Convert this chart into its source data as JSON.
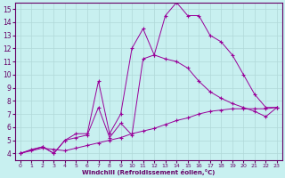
{
  "xlabel": "Windchill (Refroidissement éolien,°C)",
  "bg_color": "#c8f0f0",
  "line_color": "#990099",
  "grid_color": "#b0d8d8",
  "xlim": [
    -0.5,
    23.5
  ],
  "ylim": [
    3.5,
    15.5
  ],
  "xticks": [
    0,
    1,
    2,
    3,
    4,
    5,
    6,
    7,
    8,
    9,
    10,
    11,
    12,
    13,
    14,
    15,
    16,
    17,
    18,
    19,
    20,
    21,
    22,
    23
  ],
  "yticks": [
    4,
    5,
    6,
    7,
    8,
    9,
    10,
    11,
    12,
    13,
    14,
    15
  ],
  "line1_x": [
    0,
    1,
    2,
    3,
    4,
    5,
    6,
    7,
    8,
    9,
    10,
    11,
    12,
    13,
    14,
    15,
    16,
    17,
    18,
    19,
    20,
    21,
    22,
    23
  ],
  "line1_y": [
    4.0,
    4.2,
    4.4,
    4.3,
    4.2,
    4.4,
    4.6,
    4.8,
    5.0,
    5.2,
    5.5,
    5.7,
    5.9,
    6.2,
    6.5,
    6.7,
    7.0,
    7.2,
    7.3,
    7.4,
    7.4,
    7.4,
    7.4,
    7.5
  ],
  "line2_x": [
    0,
    2,
    3,
    4,
    5,
    6,
    7,
    8,
    9,
    10,
    11,
    12,
    13,
    14,
    15,
    16,
    17,
    18,
    19,
    20,
    21,
    22,
    23
  ],
  "line2_y": [
    4.0,
    4.5,
    4.0,
    5.0,
    5.2,
    5.4,
    7.5,
    5.2,
    6.3,
    5.4,
    11.2,
    11.5,
    11.2,
    11.0,
    10.5,
    9.5,
    8.7,
    8.2,
    7.8,
    7.5,
    7.2,
    6.8,
    7.5
  ],
  "line3_x": [
    0,
    1,
    2,
    3,
    4,
    5,
    6,
    7,
    8,
    9,
    10,
    11,
    12,
    13,
    14,
    15,
    16,
    17,
    18,
    19,
    20,
    21,
    22,
    23
  ],
  "line3_y": [
    4.0,
    4.3,
    4.5,
    4.0,
    5.0,
    5.5,
    5.5,
    9.5,
    5.5,
    7.0,
    12.0,
    13.5,
    11.5,
    14.5,
    15.5,
    14.5,
    14.5,
    13.0,
    12.5,
    11.5,
    10.0,
    8.5,
    7.5,
    7.5
  ]
}
